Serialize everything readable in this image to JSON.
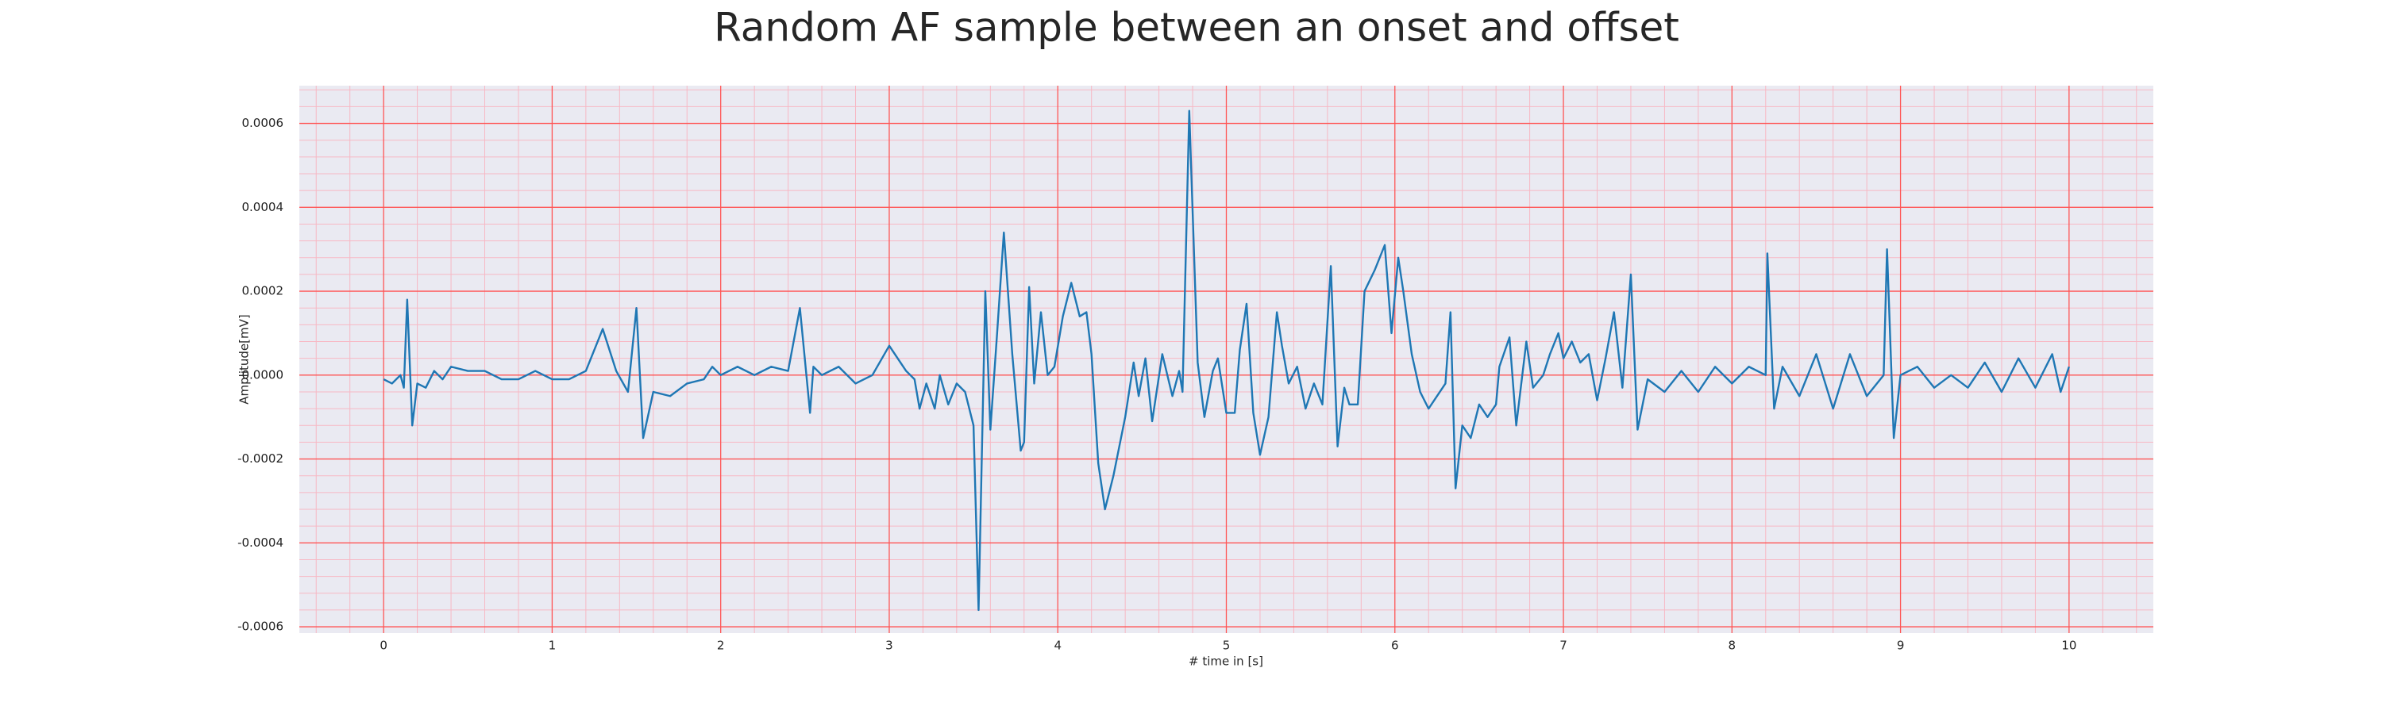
{
  "chart_data": {
    "type": "line",
    "title": "Random AF sample between an onset and offset",
    "xlabel": "# time in [s]",
    "ylabel": "Amplitude[mV]",
    "color": "#1f77b4",
    "background": "#eaeaf2",
    "grid": true,
    "grid_color": "#ff5555",
    "minor_grid_color": "#f7b8c4",
    "xlim": [
      -0.5,
      10.5
    ],
    "ylim": [
      -0.000615,
      0.00069
    ],
    "xticks": [
      0,
      1,
      2,
      3,
      4,
      5,
      6,
      7,
      8,
      9,
      10
    ],
    "yticks": [
      -0.0006,
      -0.0004,
      -0.0002,
      {
        "value": 0,
        "label": "0.0000"
      },
      0.0002,
      0.0004,
      0.0006
    ],
    "xminor_ticks": [
      -0.4,
      -0.2,
      0.2,
      0.4,
      0.6,
      0.8,
      1.2,
      1.4,
      1.6,
      1.8,
      2.2,
      2.4,
      2.6,
      2.8,
      3.2,
      3.4,
      3.6,
      3.8,
      4.2,
      4.4,
      4.6,
      4.8,
      5.2,
      5.4,
      5.6,
      5.8,
      6.2,
      6.4,
      6.6,
      6.8,
      7.2,
      7.4,
      7.6,
      7.8,
      8.2,
      8.4,
      8.6,
      8.8,
      9.2,
      9.4,
      9.6,
      9.8,
      10.2,
      10.4
    ],
    "yminor_ticks": [
      -0.00056,
      -0.00052,
      -0.00048,
      -0.00044,
      -0.00036,
      -0.00032,
      -0.00028,
      -0.00024,
      -0.00016,
      -0.00012,
      -8e-05,
      -4e-05,
      4e-05,
      8e-05,
      0.00012,
      0.00016,
      0.00024,
      0.00028,
      0.00032,
      0.00036,
      0.00044,
      0.00048,
      0.00052,
      0.00056,
      0.00064,
      0.00068
    ],
    "x": [
      0,
      0.05,
      0.1,
      0.12,
      0.14,
      0.17,
      0.2,
      0.25,
      0.3,
      0.35,
      0.4,
      0.5,
      0.6,
      0.7,
      0.8,
      0.9,
      1.0,
      1.1,
      1.2,
      1.3,
      1.38,
      1.45,
      1.5,
      1.54,
      1.6,
      1.7,
      1.8,
      1.9,
      1.95,
      2.0,
      2.1,
      2.2,
      2.3,
      2.4,
      2.47,
      2.53,
      2.55,
      2.6,
      2.7,
      2.8,
      2.9,
      3.0,
      3.1,
      3.15,
      3.18,
      3.22,
      3.27,
      3.3,
      3.35,
      3.4,
      3.45,
      3.5,
      3.53,
      3.57,
      3.6,
      3.64,
      3.68,
      3.73,
      3.78,
      3.8,
      3.83,
      3.86,
      3.9,
      3.94,
      3.98,
      4.03,
      4.08,
      4.13,
      4.17,
      4.2,
      4.24,
      4.28,
      4.33,
      4.4,
      4.45,
      4.48,
      4.52,
      4.56,
      4.62,
      4.68,
      4.72,
      4.74,
      4.78,
      4.83,
      4.87,
      4.92,
      4.95,
      5.0,
      5.05,
      5.08,
      5.12,
      5.16,
      5.2,
      5.25,
      5.3,
      5.33,
      5.37,
      5.42,
      5.47,
      5.52,
      5.57,
      5.62,
      5.66,
      5.7,
      5.73,
      5.78,
      5.82,
      5.88,
      5.94,
      5.98,
      6.02,
      6.05,
      6.1,
      6.15,
      6.2,
      6.3,
      6.33,
      6.36,
      6.4,
      6.45,
      6.5,
      6.55,
      6.6,
      6.62,
      6.68,
      6.72,
      6.78,
      6.82,
      6.88,
      6.92,
      6.97,
      7.0,
      7.05,
      7.1,
      7.15,
      7.2,
      7.25,
      7.3,
      7.35,
      7.4,
      7.44,
      7.5,
      7.6,
      7.7,
      7.8,
      7.9,
      8.0,
      8.1,
      8.2,
      8.21,
      8.25,
      8.3,
      8.4,
      8.5,
      8.6,
      8.7,
      8.8,
      8.9,
      8.92,
      8.96,
      9.0,
      9.1,
      9.2,
      9.3,
      9.4,
      9.5,
      9.6,
      9.7,
      9.8,
      9.9,
      9.95,
      10.0
    ],
    "values": [
      -1e-05,
      -2e-05,
      0,
      -3e-05,
      0.00018,
      -0.00012,
      -2e-05,
      -3e-05,
      1e-05,
      -1e-05,
      2e-05,
      1e-05,
      1e-05,
      -1e-05,
      -1e-05,
      1e-05,
      -1e-05,
      -1e-05,
      1e-05,
      0.00011,
      1e-05,
      -4e-05,
      0.00016,
      -0.00015,
      -4e-05,
      -5e-05,
      -2e-05,
      -1e-05,
      2e-05,
      0,
      2e-05,
      0,
      2e-05,
      1e-05,
      0.00016,
      -9e-05,
      2e-05,
      0,
      2e-05,
      -2e-05,
      0,
      7e-05,
      1e-05,
      -1e-05,
      -8e-05,
      -2e-05,
      -8e-05,
      0,
      -7e-05,
      -2e-05,
      -4e-05,
      -0.00012,
      -0.00056,
      0.0002,
      -0.00013,
      0.0001,
      0.00034,
      5e-05,
      -0.00018,
      -0.00016,
      0.00021,
      -2e-05,
      0.00015,
      0,
      2e-05,
      0.00014,
      0.00022,
      0.00014,
      0.00015,
      5e-05,
      -0.00021,
      -0.00032,
      -0.00024,
      -0.0001,
      3e-05,
      -5e-05,
      4e-05,
      -0.00011,
      5e-05,
      -5e-05,
      1e-05,
      -4e-05,
      0.00063,
      3e-05,
      -0.0001,
      1e-05,
      4e-05,
      -9e-05,
      -9e-05,
      6e-05,
      0.00017,
      -9e-05,
      -0.00019,
      -0.0001,
      0.00015,
      7e-05,
      -2e-05,
      2e-05,
      -8e-05,
      -2e-05,
      -7e-05,
      0.00026,
      -0.00017,
      -3e-05,
      -7e-05,
      -7e-05,
      0.0002,
      0.00025,
      0.00031,
      0.0001,
      0.00028,
      0.0002,
      5e-05,
      -4e-05,
      -8e-05,
      -2e-05,
      0.00015,
      -0.00027,
      -0.00012,
      -0.00015,
      -7e-05,
      -0.0001,
      -7e-05,
      2e-05,
      9e-05,
      -0.00012,
      8e-05,
      -3e-05,
      0,
      5e-05,
      0.0001,
      4e-05,
      8e-05,
      3e-05,
      5e-05,
      -6e-05,
      4e-05,
      0.00015,
      -3e-05,
      0.00024,
      -0.00013,
      -1e-05,
      -4e-05,
      1e-05,
      -4e-05,
      2e-05,
      -2e-05,
      2e-05,
      0,
      0.00029,
      -8e-05,
      2e-05,
      -5e-05,
      5e-05,
      -8e-05,
      5e-05,
      -5e-05,
      0,
      0.0003,
      -0.00015,
      0,
      2e-05,
      -3e-05,
      0,
      -3e-05,
      3e-05,
      -4e-05,
      4e-05,
      -3e-05,
      5e-05,
      -4e-05,
      2e-05
    ]
  }
}
